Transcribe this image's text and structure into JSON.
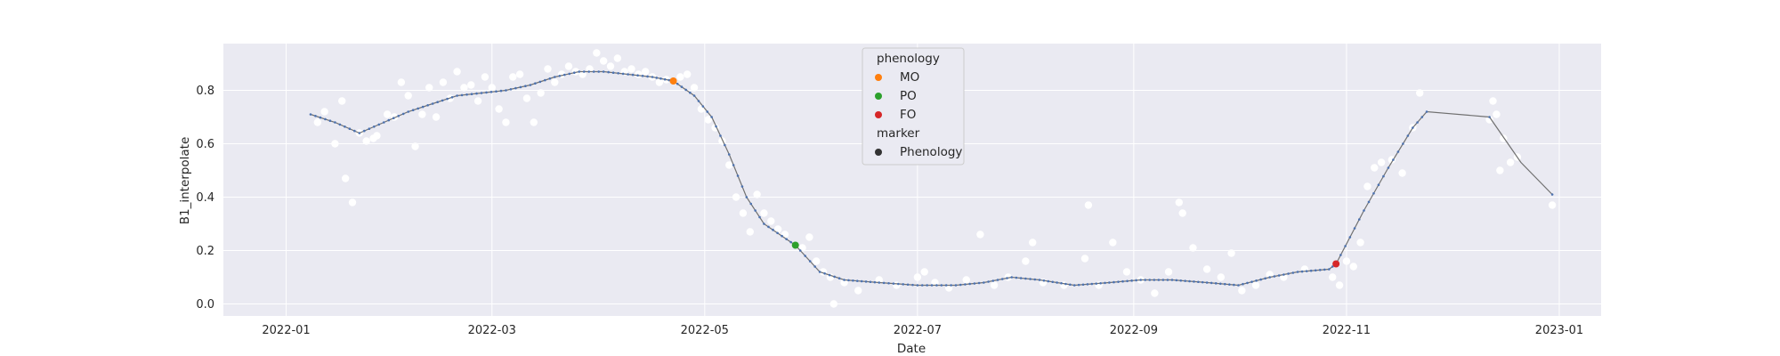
{
  "chart_data": {
    "type": "scatter",
    "title": "",
    "xlabel": "Date",
    "ylabel": "B1_interpolate",
    "xlim": [
      "2021-12-14",
      "2023-01-13"
    ],
    "ylim": [
      -0.045,
      0.975
    ],
    "grid": true,
    "legend_position": "top-center",
    "x_ticks": [
      "2022-01",
      "2022-03",
      "2022-05",
      "2022-07",
      "2022-09",
      "2022-11",
      "2023-01"
    ],
    "y_ticks": [
      0.0,
      0.2,
      0.4,
      0.6,
      0.8
    ],
    "y_tick_labels": [
      "0.0",
      "0.2",
      "0.4",
      "0.6",
      "0.8"
    ],
    "colors": {
      "background": "#eaeaf2",
      "grid": "#ffffff",
      "observed": "#ffffff",
      "line": "#707070",
      "line_markers": "#4c72b0",
      "MO": "#ff7f0e",
      "PO": "#2ca02c",
      "FO": "#d62728",
      "marker_legend": "#333333"
    },
    "legend": {
      "phenology_title": "phenology",
      "phenology_items": [
        {
          "label": "MO",
          "color": "#ff7f0e"
        },
        {
          "label": "PO",
          "color": "#2ca02c"
        },
        {
          "label": "FO",
          "color": "#d62728"
        }
      ],
      "marker_title": "marker",
      "marker_items": [
        {
          "label": "Phenology",
          "color": "#333333"
        }
      ]
    },
    "phenology_points": [
      {
        "label": "MO",
        "date": "2022-04-22",
        "y": 0.835
      },
      {
        "label": "PO",
        "date": "2022-05-27",
        "y": 0.22
      },
      {
        "label": "FO",
        "date": "2022-10-29",
        "y": 0.15
      }
    ],
    "observed_points": [
      [
        "2022-01-10",
        0.68
      ],
      [
        "2022-01-12",
        0.72
      ],
      [
        "2022-01-15",
        0.6
      ],
      [
        "2022-01-17",
        0.76
      ],
      [
        "2022-01-18",
        0.47
      ],
      [
        "2022-01-20",
        0.38
      ],
      [
        "2022-01-22",
        0.64
      ],
      [
        "2022-01-24",
        0.61
      ],
      [
        "2022-01-26",
        0.62
      ],
      [
        "2022-01-27",
        0.63
      ],
      [
        "2022-01-30",
        0.71
      ],
      [
        "2022-02-01",
        0.7
      ],
      [
        "2022-02-03",
        0.83
      ],
      [
        "2022-02-05",
        0.78
      ],
      [
        "2022-02-07",
        0.59
      ],
      [
        "2022-02-09",
        0.71
      ],
      [
        "2022-02-11",
        0.81
      ],
      [
        "2022-02-13",
        0.7
      ],
      [
        "2022-02-15",
        0.83
      ],
      [
        "2022-02-17",
        0.77
      ],
      [
        "2022-02-19",
        0.87
      ],
      [
        "2022-02-21",
        0.81
      ],
      [
        "2022-02-23",
        0.82
      ],
      [
        "2022-02-25",
        0.76
      ],
      [
        "2022-02-27",
        0.85
      ],
      [
        "2022-03-01",
        0.81
      ],
      [
        "2022-03-03",
        0.73
      ],
      [
        "2022-03-05",
        0.68
      ],
      [
        "2022-03-07",
        0.85
      ],
      [
        "2022-03-09",
        0.86
      ],
      [
        "2022-03-11",
        0.77
      ],
      [
        "2022-03-13",
        0.68
      ],
      [
        "2022-03-15",
        0.79
      ],
      [
        "2022-03-17",
        0.88
      ],
      [
        "2022-03-19",
        0.83
      ],
      [
        "2022-03-21",
        0.86
      ],
      [
        "2022-03-23",
        0.89
      ],
      [
        "2022-03-25",
        0.87
      ],
      [
        "2022-03-27",
        0.86
      ],
      [
        "2022-03-29",
        0.88
      ],
      [
        "2022-03-31",
        0.94
      ],
      [
        "2022-04-02",
        0.91
      ],
      [
        "2022-04-04",
        0.89
      ],
      [
        "2022-04-06",
        0.92
      ],
      [
        "2022-04-08",
        0.87
      ],
      [
        "2022-04-10",
        0.88
      ],
      [
        "2022-04-12",
        0.86
      ],
      [
        "2022-04-14",
        0.87
      ],
      [
        "2022-04-16",
        0.85
      ],
      [
        "2022-04-18",
        0.83
      ],
      [
        "2022-04-20",
        0.84
      ],
      [
        "2022-04-24",
        0.85
      ],
      [
        "2022-04-26",
        0.86
      ],
      [
        "2022-04-28",
        0.81
      ],
      [
        "2022-04-30",
        0.73
      ],
      [
        "2022-05-02",
        0.69
      ],
      [
        "2022-05-04",
        0.66
      ],
      [
        "2022-05-06",
        0.61
      ],
      [
        "2022-05-08",
        0.52
      ],
      [
        "2022-05-10",
        0.4
      ],
      [
        "2022-05-12",
        0.34
      ],
      [
        "2022-05-14",
        0.27
      ],
      [
        "2022-05-16",
        0.41
      ],
      [
        "2022-05-18",
        0.34
      ],
      [
        "2022-05-20",
        0.31
      ],
      [
        "2022-05-22",
        0.28
      ],
      [
        "2022-05-24",
        0.26
      ],
      [
        "2022-05-29",
        0.21
      ],
      [
        "2022-05-31",
        0.25
      ],
      [
        "2022-06-02",
        0.16
      ],
      [
        "2022-06-04",
        0.12
      ],
      [
        "2022-06-06",
        0.1
      ],
      [
        "2022-06-07",
        0.0
      ],
      [
        "2022-06-10",
        0.08
      ],
      [
        "2022-06-14",
        0.05
      ],
      [
        "2022-06-20",
        0.09
      ],
      [
        "2022-06-25",
        0.07
      ],
      [
        "2022-07-01",
        0.1
      ],
      [
        "2022-07-03",
        0.12
      ],
      [
        "2022-07-06",
        0.08
      ],
      [
        "2022-07-10",
        0.06
      ],
      [
        "2022-07-15",
        0.09
      ],
      [
        "2022-07-19",
        0.26
      ],
      [
        "2022-07-23",
        0.07
      ],
      [
        "2022-07-27",
        0.1
      ],
      [
        "2022-08-01",
        0.16
      ],
      [
        "2022-08-03",
        0.23
      ],
      [
        "2022-08-06",
        0.08
      ],
      [
        "2022-08-12",
        0.07
      ],
      [
        "2022-08-18",
        0.17
      ],
      [
        "2022-08-19",
        0.37
      ],
      [
        "2022-08-22",
        0.07
      ],
      [
        "2022-08-26",
        0.23
      ],
      [
        "2022-08-30",
        0.12
      ],
      [
        "2022-09-03",
        0.09
      ],
      [
        "2022-09-07",
        0.04
      ],
      [
        "2022-09-11",
        0.12
      ],
      [
        "2022-09-14",
        0.38
      ],
      [
        "2022-09-15",
        0.34
      ],
      [
        "2022-09-18",
        0.21
      ],
      [
        "2022-09-22",
        0.13
      ],
      [
        "2022-09-26",
        0.1
      ],
      [
        "2022-09-29",
        0.19
      ],
      [
        "2022-10-02",
        0.05
      ],
      [
        "2022-10-06",
        0.07
      ],
      [
        "2022-10-10",
        0.11
      ],
      [
        "2022-10-14",
        0.1
      ],
      [
        "2022-10-20",
        0.13
      ],
      [
        "2022-10-28",
        0.1
      ],
      [
        "2022-10-30",
        0.07
      ],
      [
        "2022-11-01",
        0.16
      ],
      [
        "2022-11-03",
        0.14
      ],
      [
        "2022-11-05",
        0.23
      ],
      [
        "2022-11-07",
        0.44
      ],
      [
        "2022-11-09",
        0.51
      ],
      [
        "2022-11-11",
        0.53
      ],
      [
        "2022-11-14",
        0.54
      ],
      [
        "2022-11-17",
        0.49
      ],
      [
        "2022-11-20",
        0.66
      ],
      [
        "2022-11-22",
        0.79
      ],
      [
        "2022-12-12",
        0.69
      ],
      [
        "2022-12-13",
        0.76
      ],
      [
        "2022-12-14",
        0.71
      ],
      [
        "2022-12-15",
        0.5
      ],
      [
        "2022-12-16",
        0.62
      ],
      [
        "2022-12-18",
        0.53
      ],
      [
        "2022-12-20",
        0.55
      ],
      [
        "2022-12-30",
        0.37
      ]
    ],
    "series": [
      {
        "style": "line with small markers",
        "points": [
          [
            "2022-01-08",
            0.71
          ],
          [
            "2022-01-15",
            0.68
          ],
          [
            "2022-01-22",
            0.64
          ],
          [
            "2022-01-29",
            0.68
          ],
          [
            "2022-02-05",
            0.72
          ],
          [
            "2022-02-12",
            0.75
          ],
          [
            "2022-02-19",
            0.78
          ],
          [
            "2022-02-26",
            0.79
          ],
          [
            "2022-03-05",
            0.8
          ],
          [
            "2022-03-12",
            0.82
          ],
          [
            "2022-03-19",
            0.85
          ],
          [
            "2022-03-26",
            0.87
          ],
          [
            "2022-04-02",
            0.87
          ],
          [
            "2022-04-09",
            0.86
          ],
          [
            "2022-04-16",
            0.85
          ],
          [
            "2022-04-22",
            0.835
          ],
          [
            "2022-04-28",
            0.78
          ],
          [
            "2022-05-03",
            0.7
          ],
          [
            "2022-05-08",
            0.56
          ],
          [
            "2022-05-13",
            0.4
          ],
          [
            "2022-05-18",
            0.3
          ],
          [
            "2022-05-27",
            0.22
          ],
          [
            "2022-06-03",
            0.12
          ],
          [
            "2022-06-10",
            0.09
          ],
          [
            "2022-06-20",
            0.08
          ],
          [
            "2022-07-01",
            0.07
          ],
          [
            "2022-07-12",
            0.07
          ],
          [
            "2022-07-20",
            0.08
          ],
          [
            "2022-07-28",
            0.1
          ],
          [
            "2022-08-05",
            0.09
          ],
          [
            "2022-08-15",
            0.07
          ],
          [
            "2022-08-25",
            0.08
          ],
          [
            "2022-09-03",
            0.09
          ],
          [
            "2022-09-12",
            0.09
          ],
          [
            "2022-09-22",
            0.08
          ],
          [
            "2022-10-01",
            0.07
          ],
          [
            "2022-10-10",
            0.1
          ],
          [
            "2022-10-18",
            0.12
          ],
          [
            "2022-10-27",
            0.13
          ],
          [
            "2022-10-29",
            0.15
          ],
          [
            "2022-11-06",
            0.35
          ],
          [
            "2022-11-13",
            0.51
          ],
          [
            "2022-11-20",
            0.66
          ],
          [
            "2022-11-24",
            0.72
          ],
          [
            "2022-12-12",
            0.7
          ],
          [
            "2022-12-21",
            0.53
          ],
          [
            "2022-12-30",
            0.41
          ]
        ]
      }
    ]
  }
}
